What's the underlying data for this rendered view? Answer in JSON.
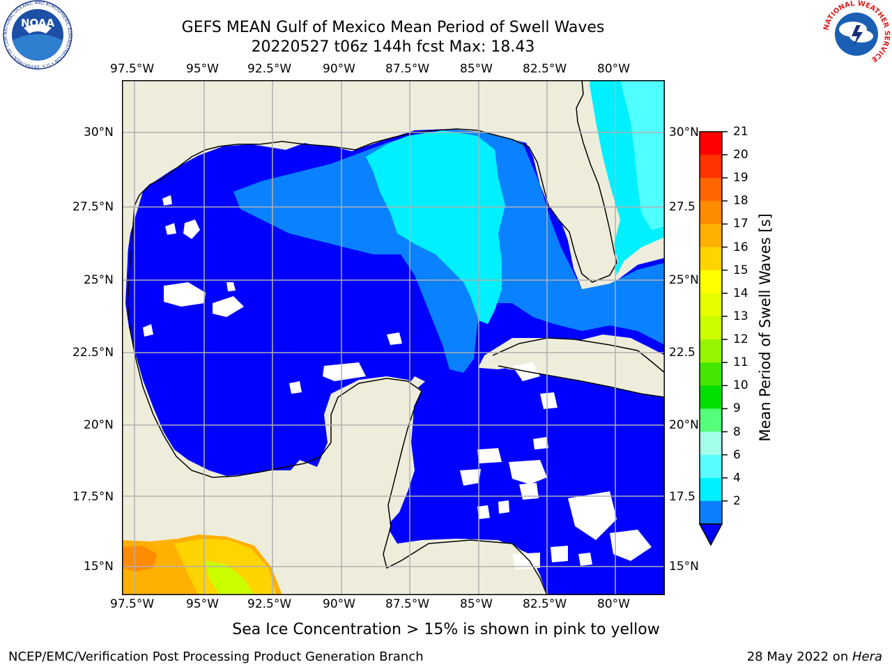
{
  "title": {
    "line1": "GEFS MEAN Gulf of Mexico Mean Period of Swell Waves",
    "line2": "20220527 t06z 144h fcst   Max: 18.43"
  },
  "map": {
    "lon_labels": [
      "97.5°W",
      "95°W",
      "92.5°W",
      "90°W",
      "87.5°W",
      "85°W",
      "82.5°W",
      "80°W"
    ],
    "lat_labels_left": [
      "30°N",
      "27.5°N",
      "25°N",
      "22.5°N",
      "20°N",
      "17.5°N",
      "15°N"
    ],
    "lat_labels_right": [
      "30°N",
      "27.5",
      "25°N",
      "22.5",
      "20°N",
      "17.5",
      "15°N"
    ],
    "extent": {
      "lon_min": -98,
      "lon_max": -78.2,
      "lat_min": 14.1,
      "lat_max": 31.8
    },
    "colors": {
      "land": "#eeeddc",
      "ocean_low": "#0000ff",
      "ocean_mid": "#0a82ff",
      "ocean_high": "#00f0ff",
      "ocean_pale": "#50ffff",
      "grid": "#b0b0b0"
    }
  },
  "colorbar": {
    "title": "Mean Period of Swell Waves [s]",
    "ticks": [
      "21",
      "20",
      "19",
      "18",
      "17",
      "16",
      "15",
      "14",
      "13",
      "12",
      "11",
      "10",
      "9",
      "8",
      "6",
      "4",
      "2"
    ],
    "colors": [
      "#fe0000",
      "#fe3300",
      "#ff6500",
      "#ff8b00",
      "#ffb000",
      "#ffd400",
      "#ffff00",
      "#e5ff00",
      "#cbff00",
      "#98f500",
      "#47e600",
      "#00e000",
      "#54ff7b",
      "#a4ffe8",
      "#5afdff",
      "#00efff",
      "#0b80ff"
    ],
    "extend_color": "#0000ff"
  },
  "note": "Sea Ice Concentration > 15% is shown in pink to yellow",
  "footer": {
    "left": "NCEP/EMC/Verification Post Processing Product Generation Branch",
    "date": "28 May 2022 on ",
    "machine": "Hera"
  },
  "logos": {
    "noaa": {
      "text": "NOAA",
      "ring_text": "NATIONAL OCEANIC AND ATMOSPHERIC ADMINISTRATION • U.S. DEPARTMENT OF COMMERCE"
    },
    "nws": {
      "ring_text": "NATIONAL WEATHER SERVICE"
    }
  }
}
